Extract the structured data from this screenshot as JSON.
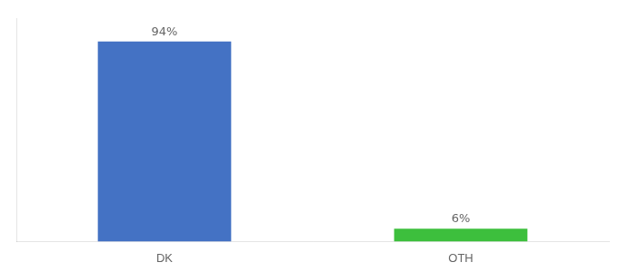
{
  "chart_data": {
    "type": "bar",
    "categories": [
      "DK",
      "OTH"
    ],
    "values": [
      94,
      6
    ],
    "value_labels": [
      "94%",
      "6%"
    ],
    "colors": [
      "#4472c4",
      "#3dbf3d"
    ],
    "ylim": [
      0,
      105
    ],
    "data_labels": true,
    "tick_labels": "x",
    "grid": false
  }
}
